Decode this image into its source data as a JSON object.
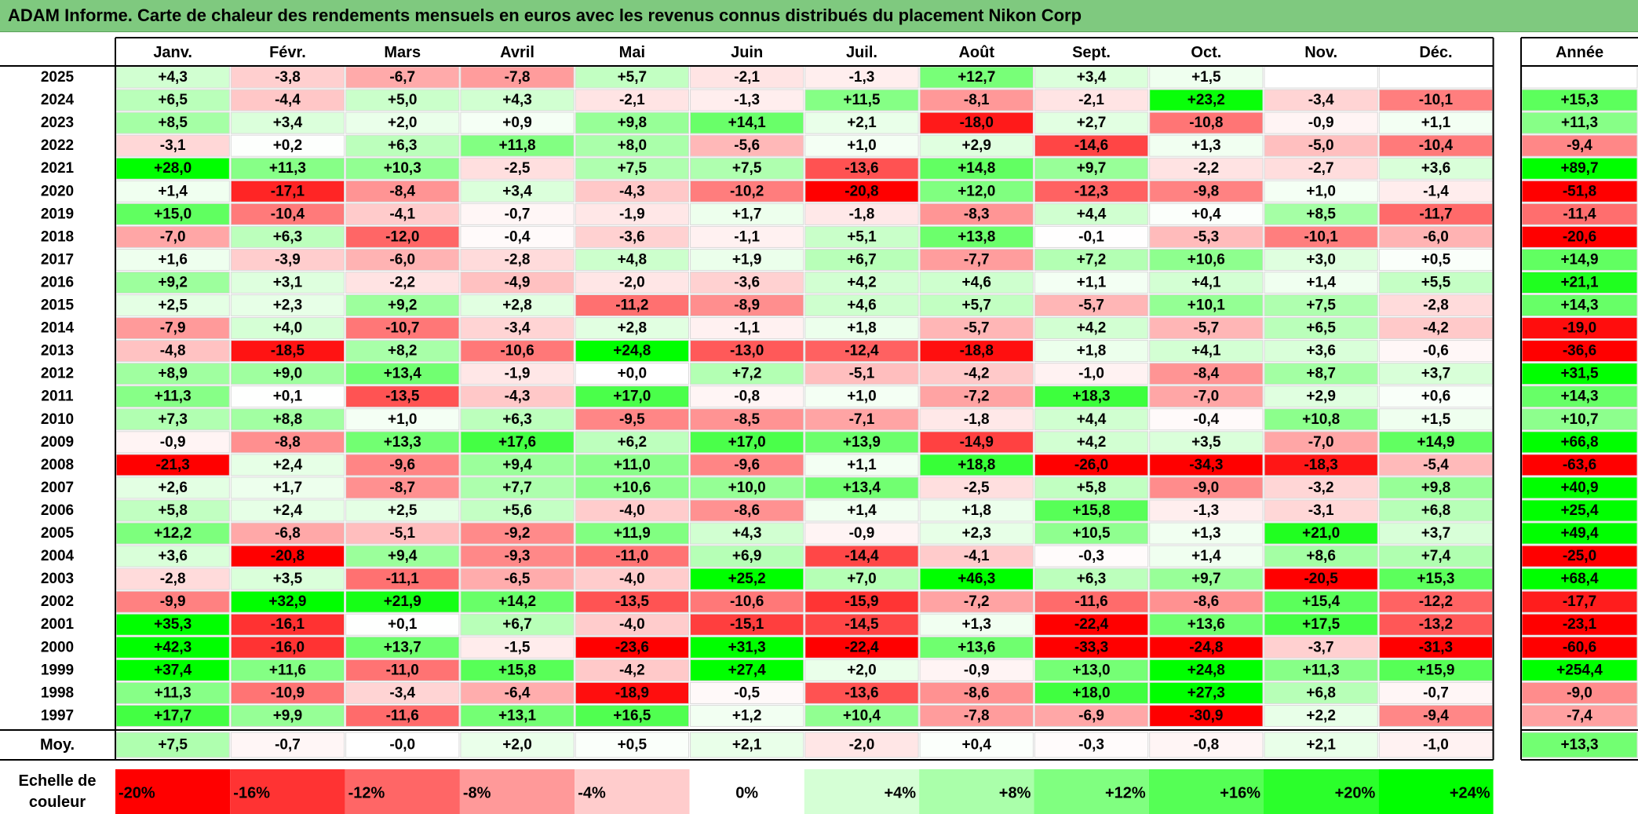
{
  "title": "ADAM Informe. Carte de chaleur des rendements mensuels en euros avec les revenus connus distribués du placement Nikon Corp",
  "chart_data": {
    "type": "heatmap",
    "title": "ADAM Informe. Carte de chaleur des rendements mensuels en euros avec les revenus connus distribués du placement Nikon Corp",
    "months": [
      "Janv.",
      "Févr.",
      "Mars",
      "Avril",
      "Mai",
      "Juin",
      "Juil.",
      "Août",
      "Sept.",
      "Oct.",
      "Nov.",
      "Déc."
    ],
    "year_header": "Année",
    "rows": [
      {
        "year": "2025",
        "months": [
          "+4,3",
          "-3,8",
          "-6,7",
          "-7,8",
          "+5,7",
          "-2,1",
          "-1,3",
          "+12,7",
          "+3,4",
          "+1,5",
          "",
          ""
        ],
        "annual": ""
      },
      {
        "year": "2024",
        "months": [
          "+6,5",
          "-4,4",
          "+5,0",
          "+4,3",
          "-2,1",
          "-1,3",
          "+11,5",
          "-8,1",
          "-2,1",
          "+23,2",
          "-3,4",
          "-10,1"
        ],
        "annual": "+15,3"
      },
      {
        "year": "2023",
        "months": [
          "+8,5",
          "+3,4",
          "+2,0",
          "+0,9",
          "+9,8",
          "+14,1",
          "+2,1",
          "-18,0",
          "+2,7",
          "-10,8",
          "-0,9",
          "+1,1"
        ],
        "annual": "+11,3"
      },
      {
        "year": "2022",
        "months": [
          "-3,1",
          "+0,2",
          "+6,3",
          "+11,8",
          "+8,0",
          "-5,6",
          "+1,0",
          "+2,9",
          "-14,6",
          "+1,3",
          "-5,0",
          "-10,4"
        ],
        "annual": "-9,4"
      },
      {
        "year": "2021",
        "months": [
          "+28,0",
          "+11,3",
          "+10,3",
          "-2,5",
          "+7,5",
          "+7,5",
          "-13,6",
          "+14,8",
          "+9,7",
          "-2,2",
          "-2,7",
          "+3,6"
        ],
        "annual": "+89,7"
      },
      {
        "year": "2020",
        "months": [
          "+1,4",
          "-17,1",
          "-8,4",
          "+3,4",
          "-4,3",
          "-10,2",
          "-20,8",
          "+12,0",
          "-12,3",
          "-9,8",
          "+1,0",
          "-1,4"
        ],
        "annual": "-51,8"
      },
      {
        "year": "2019",
        "months": [
          "+15,0",
          "-10,4",
          "-4,1",
          "-0,7",
          "-1,9",
          "+1,7",
          "-1,8",
          "-8,3",
          "+4,4",
          "+0,4",
          "+8,5",
          "-11,7"
        ],
        "annual": "-11,4"
      },
      {
        "year": "2018",
        "months": [
          "-7,0",
          "+6,3",
          "-12,0",
          "-0,4",
          "-3,6",
          "-1,1",
          "+5,1",
          "+13,8",
          "-0,1",
          "-5,3",
          "-10,1",
          "-6,0"
        ],
        "annual": "-20,6"
      },
      {
        "year": "2017",
        "months": [
          "+1,6",
          "-3,9",
          "-6,0",
          "-2,8",
          "+4,8",
          "+1,9",
          "+6,7",
          "-7,7",
          "+7,2",
          "+10,6",
          "+3,0",
          "+0,5"
        ],
        "annual": "+14,9"
      },
      {
        "year": "2016",
        "months": [
          "+9,2",
          "+3,1",
          "-2,2",
          "-4,9",
          "-2,0",
          "-3,6",
          "+4,2",
          "+4,6",
          "+1,1",
          "+4,1",
          "+1,4",
          "+5,5"
        ],
        "annual": "+21,1"
      },
      {
        "year": "2015",
        "months": [
          "+2,5",
          "+2,3",
          "+9,2",
          "+2,8",
          "-11,2",
          "-8,9",
          "+4,6",
          "+5,7",
          "-5,7",
          "+10,1",
          "+7,5",
          "-2,8"
        ],
        "annual": "+14,3"
      },
      {
        "year": "2014",
        "months": [
          "-7,9",
          "+4,0",
          "-10,7",
          "-3,4",
          "+2,8",
          "-1,1",
          "+1,8",
          "-5,7",
          "+4,2",
          "-5,7",
          "+6,5",
          "-4,2"
        ],
        "annual": "-19,0"
      },
      {
        "year": "2013",
        "months": [
          "-4,8",
          "-18,5",
          "+8,2",
          "-10,6",
          "+24,8",
          "-13,0",
          "-12,4",
          "-18,8",
          "+1,8",
          "+4,1",
          "+3,6",
          "-0,6"
        ],
        "annual": "-36,6"
      },
      {
        "year": "2012",
        "months": [
          "+8,9",
          "+9,0",
          "+13,4",
          "-1,9",
          "+0,0",
          "+7,2",
          "-5,1",
          "-4,2",
          "-1,0",
          "-8,4",
          "+8,7",
          "+3,7"
        ],
        "annual": "+31,5"
      },
      {
        "year": "2011",
        "months": [
          "+11,3",
          "+0,1",
          "-13,5",
          "-4,3",
          "+17,0",
          "-0,8",
          "+1,0",
          "-7,2",
          "+18,3",
          "-7,0",
          "+2,9",
          "+0,6"
        ],
        "annual": "+14,3"
      },
      {
        "year": "2010",
        "months": [
          "+7,3",
          "+8,8",
          "+1,0",
          "+6,3",
          "-9,5",
          "-8,5",
          "-7,1",
          "-1,8",
          "+4,4",
          "-0,4",
          "+10,8",
          "+1,5"
        ],
        "annual": "+10,7"
      },
      {
        "year": "2009",
        "months": [
          "-0,9",
          "-8,8",
          "+13,3",
          "+17,6",
          "+6,2",
          "+17,0",
          "+13,9",
          "-14,9",
          "+4,2",
          "+3,5",
          "-7,0",
          "+14,9"
        ],
        "annual": "+66,8"
      },
      {
        "year": "2008",
        "months": [
          "-21,3",
          "+2,4",
          "-9,6",
          "+9,4",
          "+11,0",
          "-9,6",
          "+1,1",
          "+18,8",
          "-26,0",
          "-34,3",
          "-18,3",
          "-5,4"
        ],
        "annual": "-63,6"
      },
      {
        "year": "2007",
        "months": [
          "+2,6",
          "+1,7",
          "-8,7",
          "+7,7",
          "+10,6",
          "+10,0",
          "+13,4",
          "-2,5",
          "+5,8",
          "-9,0",
          "-3,2",
          "+9,8"
        ],
        "annual": "+40,9"
      },
      {
        "year": "2006",
        "months": [
          "+5,8",
          "+2,4",
          "+2,5",
          "+5,6",
          "-4,0",
          "-8,6",
          "+1,4",
          "+1,8",
          "+15,8",
          "-1,3",
          "-3,1",
          "+6,8"
        ],
        "annual": "+25,4"
      },
      {
        "year": "2005",
        "months": [
          "+12,2",
          "-6,8",
          "-5,1",
          "-9,2",
          "+11,9",
          "+4,3",
          "-0,9",
          "+2,3",
          "+10,5",
          "+1,3",
          "+21,0",
          "+3,7"
        ],
        "annual": "+49,4"
      },
      {
        "year": "2004",
        "months": [
          "+3,6",
          "-20,8",
          "+9,4",
          "-9,3",
          "-11,0",
          "+6,9",
          "-14,4",
          "-4,1",
          "-0,3",
          "+1,4",
          "+8,6",
          "+7,4"
        ],
        "annual": "-25,0"
      },
      {
        "year": "2003",
        "months": [
          "-2,8",
          "+3,5",
          "-11,1",
          "-6,5",
          "-4,0",
          "+25,2",
          "+7,0",
          "+46,3",
          "+6,3",
          "+9,7",
          "-20,5",
          "+15,3"
        ],
        "annual": "+68,4"
      },
      {
        "year": "2002",
        "months": [
          "-9,9",
          "+32,9",
          "+21,9",
          "+14,2",
          "-13,5",
          "-10,6",
          "-15,9",
          "-7,2",
          "-11,6",
          "-8,6",
          "+15,4",
          "-12,2"
        ],
        "annual": "-17,7"
      },
      {
        "year": "2001",
        "months": [
          "+35,3",
          "-16,1",
          "+0,1",
          "+6,7",
          "-4,0",
          "-15,1",
          "-14,5",
          "+1,3",
          "-22,4",
          "+13,6",
          "+17,5",
          "-13,2"
        ],
        "annual": "-23,1"
      },
      {
        "year": "2000",
        "months": [
          "+42,3",
          "-16,0",
          "+13,7",
          "-1,5",
          "-23,6",
          "+31,3",
          "-22,4",
          "+13,6",
          "-33,3",
          "-24,8",
          "-3,7",
          "-31,3"
        ],
        "annual": "-60,6"
      },
      {
        "year": "1999",
        "months": [
          "+37,4",
          "+11,6",
          "-11,0",
          "+15,8",
          "-4,2",
          "+27,4",
          "+2,0",
          "-0,9",
          "+13,0",
          "+24,8",
          "+11,3",
          "+15,9"
        ],
        "annual": "+254,4"
      },
      {
        "year": "1998",
        "months": [
          "+11,3",
          "-10,9",
          "-3,4",
          "-6,4",
          "-18,9",
          "-0,5",
          "-13,6",
          "-8,6",
          "+18,0",
          "+27,3",
          "+6,8",
          "-0,7"
        ],
        "annual": "-9,0"
      },
      {
        "year": "1997",
        "months": [
          "+17,7",
          "+9,9",
          "-11,6",
          "+13,1",
          "+16,5",
          "+1,2",
          "+10,4",
          "-7,8",
          "-6,9",
          "-30,9",
          "+2,2",
          "-9,4"
        ],
        "annual": "-7,4"
      }
    ],
    "average_label": "Moy.",
    "averages": [
      "+7,5",
      "-0,7",
      "-0,0",
      "+2,0",
      "+0,5",
      "+2,1",
      "-2,0",
      "+0,4",
      "-0,3",
      "-0,8",
      "+2,1",
      "-1,0"
    ],
    "average_annual": "+13,3",
    "scale_label_line1": "Echelle de",
    "scale_label_line2": "couleur",
    "scale": [
      "-20%",
      "-16%",
      "-12%",
      "-8%",
      "-4%",
      "0%",
      "+4%",
      "+8%",
      "+12%",
      "+16%",
      "+20%",
      "+24%"
    ],
    "colors": {
      "negative": "#ff0000",
      "neutral": "#ffffff",
      "positive": "#00ff00",
      "title_bar": "#7fc97f"
    }
  }
}
